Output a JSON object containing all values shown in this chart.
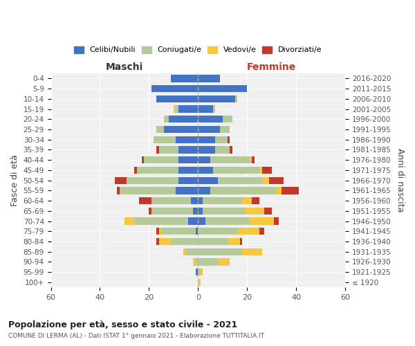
{
  "age_groups": [
    "100+",
    "95-99",
    "90-94",
    "85-89",
    "80-84",
    "75-79",
    "70-74",
    "65-69",
    "60-64",
    "55-59",
    "50-54",
    "45-49",
    "40-44",
    "35-39",
    "30-34",
    "25-29",
    "20-24",
    "15-19",
    "10-14",
    "5-9",
    "0-4"
  ],
  "birth_years": [
    "≤ 1920",
    "1921-1925",
    "1926-1930",
    "1931-1935",
    "1936-1940",
    "1941-1945",
    "1946-1950",
    "1951-1955",
    "1956-1960",
    "1961-1965",
    "1966-1970",
    "1971-1975",
    "1976-1980",
    "1981-1985",
    "1986-1990",
    "1991-1995",
    "1996-2000",
    "2001-2005",
    "2006-2010",
    "2011-2015",
    "2016-2020"
  ],
  "colors": {
    "celibi": "#4472c4",
    "coniugati": "#b5c99a",
    "vedovi": "#f5c842",
    "divorziati": "#c0392b"
  },
  "maschi": {
    "celibi": [
      0,
      1,
      0,
      0,
      0,
      1,
      4,
      2,
      3,
      9,
      8,
      8,
      8,
      8,
      9,
      14,
      12,
      8,
      17,
      19,
      11
    ],
    "coniugati": [
      0,
      0,
      1,
      5,
      11,
      14,
      22,
      17,
      16,
      23,
      21,
      17,
      14,
      8,
      9,
      3,
      2,
      1,
      0,
      0,
      0
    ],
    "vedovi": [
      0,
      0,
      1,
      1,
      5,
      1,
      4,
      0,
      0,
      0,
      0,
      0,
      0,
      0,
      0,
      0,
      0,
      1,
      0,
      0,
      0
    ],
    "divorziati": [
      0,
      0,
      0,
      0,
      1,
      1,
      0,
      1,
      5,
      1,
      5,
      1,
      1,
      1,
      0,
      0,
      0,
      0,
      0,
      0,
      0
    ]
  },
  "femmine": {
    "celibi": [
      0,
      0,
      0,
      0,
      0,
      0,
      3,
      2,
      2,
      5,
      8,
      6,
      5,
      7,
      7,
      9,
      10,
      6,
      15,
      20,
      9
    ],
    "coniugati": [
      0,
      1,
      8,
      18,
      12,
      16,
      18,
      17,
      16,
      27,
      18,
      19,
      16,
      6,
      5,
      4,
      4,
      1,
      1,
      0,
      0
    ],
    "vedovi": [
      1,
      1,
      5,
      8,
      5,
      9,
      10,
      8,
      4,
      2,
      3,
      1,
      1,
      0,
      0,
      0,
      0,
      0,
      0,
      0,
      0
    ],
    "divorziati": [
      0,
      0,
      0,
      0,
      1,
      2,
      2,
      3,
      3,
      7,
      6,
      4,
      1,
      1,
      1,
      0,
      0,
      0,
      0,
      0,
      0
    ]
  },
  "xlim": 60,
  "title": "Popolazione per età, sesso e stato civile - 2021",
  "subtitle": "COMUNE DI LERMA (AL) - Dati ISTAT 1° gennaio 2021 - Elaborazione TUTTITALIA.IT",
  "ylabel_left": "Fasce di età",
  "ylabel_right": "Anni di nascita",
  "xlabel_left": "Maschi",
  "xlabel_right": "Femmine",
  "legend_labels": [
    "Celibi/Nubili",
    "Coniugati/e",
    "Vedovi/e",
    "Divorziati/e"
  ],
  "bar_height": 0.7
}
